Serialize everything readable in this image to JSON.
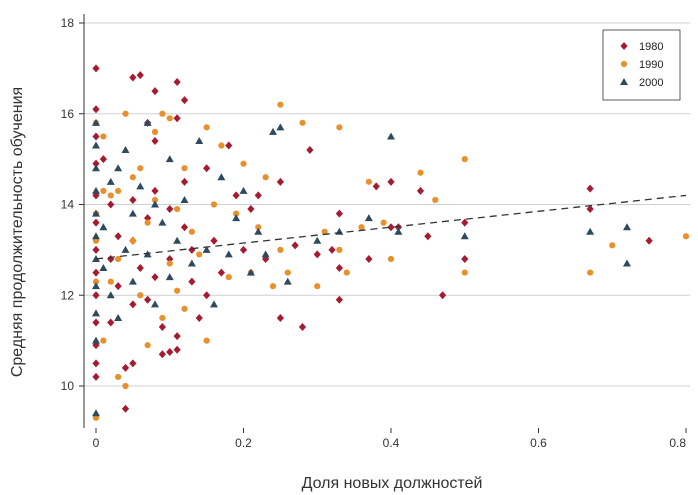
{
  "chart_data": {
    "type": "scatter",
    "xlabel": "Доля новых должностей",
    "ylabel": "Средняя продолжительность обучения",
    "xlim": [
      -0.01,
      0.8
    ],
    "ylim": [
      9.2,
      18.2
    ],
    "x_ticks": [
      0,
      0.2,
      0.4,
      0.6,
      0.8
    ],
    "x_tick_labels": [
      "0",
      "0.2",
      "0.4",
      "0.6",
      "0.8"
    ],
    "y_ticks": [
      10,
      12,
      14,
      16,
      18
    ],
    "y_tick_labels": [
      "10",
      "12",
      "14",
      "16",
      "18"
    ],
    "grid": "horizontal",
    "legend_position": "top-right",
    "trend_line": {
      "style": "dashed",
      "x": [
        0,
        0.8
      ],
      "y": [
        12.8,
        14.2
      ]
    },
    "series": [
      {
        "name": "1980",
        "marker": "diamond",
        "color": "#a51c30",
        "points": [
          [
            0.0,
            17.0
          ],
          [
            0.0,
            16.1
          ],
          [
            0.0,
            15.5
          ],
          [
            0.0,
            14.9
          ],
          [
            0.0,
            14.2
          ],
          [
            0.0,
            13.6
          ],
          [
            0.0,
            13.0
          ],
          [
            0.0,
            12.5
          ],
          [
            0.0,
            12.0
          ],
          [
            0.0,
            11.4
          ],
          [
            0.0,
            10.9
          ],
          [
            0.0,
            10.5
          ],
          [
            0.0,
            10.2
          ],
          [
            0.01,
            15.0
          ],
          [
            0.02,
            14.0
          ],
          [
            0.02,
            12.8
          ],
          [
            0.02,
            11.4
          ],
          [
            0.03,
            13.3
          ],
          [
            0.03,
            12.2
          ],
          [
            0.04,
            9.5
          ],
          [
            0.04,
            10.4
          ],
          [
            0.05,
            10.5
          ],
          [
            0.05,
            11.8
          ],
          [
            0.05,
            13.2
          ],
          [
            0.05,
            14.1
          ],
          [
            0.05,
            16.8
          ],
          [
            0.06,
            16.85
          ],
          [
            0.06,
            12.6
          ],
          [
            0.07,
            15.8
          ],
          [
            0.07,
            11.9
          ],
          [
            0.07,
            13.7
          ],
          [
            0.08,
            16.5
          ],
          [
            0.08,
            15.4
          ],
          [
            0.08,
            14.3
          ],
          [
            0.08,
            12.4
          ],
          [
            0.09,
            11.3
          ],
          [
            0.09,
            10.7
          ],
          [
            0.1,
            10.75
          ],
          [
            0.1,
            13.9
          ],
          [
            0.1,
            12.8
          ],
          [
            0.11,
            16.7
          ],
          [
            0.11,
            15.9
          ],
          [
            0.11,
            11.1
          ],
          [
            0.11,
            10.8
          ],
          [
            0.12,
            16.3
          ],
          [
            0.12,
            14.5
          ],
          [
            0.12,
            13.5
          ],
          [
            0.13,
            13.0
          ],
          [
            0.13,
            12.3
          ],
          [
            0.14,
            11.5
          ],
          [
            0.15,
            12.0
          ],
          [
            0.15,
            14.8
          ],
          [
            0.16,
            13.2
          ],
          [
            0.17,
            12.5
          ],
          [
            0.18,
            15.3
          ],
          [
            0.19,
            14.2
          ],
          [
            0.2,
            13.0
          ],
          [
            0.21,
            13.9
          ],
          [
            0.22,
            14.2
          ],
          [
            0.23,
            12.8
          ],
          [
            0.25,
            11.5
          ],
          [
            0.25,
            14.5
          ],
          [
            0.27,
            13.1
          ],
          [
            0.28,
            11.3
          ],
          [
            0.29,
            15.2
          ],
          [
            0.3,
            12.9
          ],
          [
            0.32,
            13.0
          ],
          [
            0.33,
            13.8
          ],
          [
            0.33,
            12.6
          ],
          [
            0.33,
            11.9
          ],
          [
            0.37,
            12.8
          ],
          [
            0.38,
            14.4
          ],
          [
            0.4,
            14.5
          ],
          [
            0.4,
            13.5
          ],
          [
            0.41,
            13.5
          ],
          [
            0.44,
            14.3
          ],
          [
            0.45,
            13.3
          ],
          [
            0.47,
            12.0
          ],
          [
            0.5,
            13.6
          ],
          [
            0.5,
            12.8
          ],
          [
            0.67,
            14.35
          ],
          [
            0.67,
            13.9
          ],
          [
            0.75,
            13.2
          ]
        ]
      },
      {
        "name": "1990",
        "marker": "circle",
        "color": "#e8902c",
        "points": [
          [
            0.0,
            9.3
          ],
          [
            0.0,
            13.8
          ],
          [
            0.0,
            15.8
          ],
          [
            0.0,
            13.2
          ],
          [
            0.0,
            12.3
          ],
          [
            0.01,
            15.5
          ],
          [
            0.01,
            14.3
          ],
          [
            0.01,
            11.0
          ],
          [
            0.02,
            12.3
          ],
          [
            0.02,
            14.2
          ],
          [
            0.03,
            14.3
          ],
          [
            0.03,
            12.8
          ],
          [
            0.03,
            10.2
          ],
          [
            0.04,
            10.0
          ],
          [
            0.04,
            16.0
          ],
          [
            0.05,
            14.6
          ],
          [
            0.05,
            13.2
          ],
          [
            0.06,
            14.8
          ],
          [
            0.06,
            12.0
          ],
          [
            0.07,
            10.9
          ],
          [
            0.07,
            13.6
          ],
          [
            0.08,
            15.6
          ],
          [
            0.08,
            14.1
          ],
          [
            0.09,
            16.0
          ],
          [
            0.09,
            11.5
          ],
          [
            0.1,
            15.9
          ],
          [
            0.1,
            12.7
          ],
          [
            0.11,
            13.9
          ],
          [
            0.11,
            12.1
          ],
          [
            0.12,
            14.8
          ],
          [
            0.12,
            11.7
          ],
          [
            0.13,
            13.4
          ],
          [
            0.14,
            12.9
          ],
          [
            0.15,
            15.7
          ],
          [
            0.15,
            11.0
          ],
          [
            0.16,
            14.0
          ],
          [
            0.17,
            15.3
          ],
          [
            0.18,
            12.4
          ],
          [
            0.19,
            13.8
          ],
          [
            0.2,
            14.9
          ],
          [
            0.21,
            12.5
          ],
          [
            0.22,
            13.5
          ],
          [
            0.23,
            14.6
          ],
          [
            0.24,
            12.2
          ],
          [
            0.25,
            16.2
          ],
          [
            0.25,
            13.0
          ],
          [
            0.26,
            12.5
          ],
          [
            0.28,
            15.8
          ],
          [
            0.3,
            12.2
          ],
          [
            0.31,
            13.4
          ],
          [
            0.33,
            15.7
          ],
          [
            0.33,
            13.0
          ],
          [
            0.34,
            12.5
          ],
          [
            0.36,
            13.5
          ],
          [
            0.37,
            14.5
          ],
          [
            0.39,
            13.6
          ],
          [
            0.4,
            12.8
          ],
          [
            0.44,
            14.7
          ],
          [
            0.46,
            14.1
          ],
          [
            0.5,
            15.0
          ],
          [
            0.5,
            12.5
          ],
          [
            0.67,
            12.5
          ],
          [
            0.7,
            13.1
          ],
          [
            0.8,
            13.3
          ]
        ]
      },
      {
        "name": "2000",
        "marker": "triangle",
        "color": "#2e4a5f",
        "points": [
          [
            0.0,
            9.4
          ],
          [
            0.0,
            11.0
          ],
          [
            0.0,
            11.6
          ],
          [
            0.0,
            12.2
          ],
          [
            0.0,
            12.8
          ],
          [
            0.0,
            13.3
          ],
          [
            0.0,
            13.8
          ],
          [
            0.0,
            14.3
          ],
          [
            0.0,
            14.8
          ],
          [
            0.0,
            15.3
          ],
          [
            0.0,
            15.8
          ],
          [
            0.01,
            12.6
          ],
          [
            0.01,
            13.5
          ],
          [
            0.02,
            14.5
          ],
          [
            0.02,
            12.0
          ],
          [
            0.03,
            11.5
          ],
          [
            0.03,
            14.8
          ],
          [
            0.04,
            13.0
          ],
          [
            0.04,
            15.2
          ],
          [
            0.05,
            13.8
          ],
          [
            0.05,
            12.3
          ],
          [
            0.06,
            14.4
          ],
          [
            0.07,
            15.8
          ],
          [
            0.07,
            12.9
          ],
          [
            0.08,
            14.0
          ],
          [
            0.08,
            11.8
          ],
          [
            0.09,
            13.6
          ],
          [
            0.1,
            15.0
          ],
          [
            0.1,
            12.4
          ],
          [
            0.11,
            13.2
          ],
          [
            0.12,
            14.1
          ],
          [
            0.13,
            12.7
          ],
          [
            0.14,
            15.4
          ],
          [
            0.15,
            13.0
          ],
          [
            0.16,
            11.8
          ],
          [
            0.17,
            14.6
          ],
          [
            0.18,
            12.9
          ],
          [
            0.19,
            13.7
          ],
          [
            0.2,
            14.3
          ],
          [
            0.21,
            12.5
          ],
          [
            0.22,
            13.4
          ],
          [
            0.23,
            12.9
          ],
          [
            0.24,
            15.6
          ],
          [
            0.25,
            15.7
          ],
          [
            0.26,
            12.3
          ],
          [
            0.3,
            13.2
          ],
          [
            0.33,
            13.4
          ],
          [
            0.37,
            13.7
          ],
          [
            0.4,
            15.5
          ],
          [
            0.41,
            13.4
          ],
          [
            0.5,
            13.3
          ],
          [
            0.67,
            13.4
          ],
          [
            0.72,
            13.5
          ],
          [
            0.72,
            12.7
          ]
        ]
      }
    ]
  }
}
